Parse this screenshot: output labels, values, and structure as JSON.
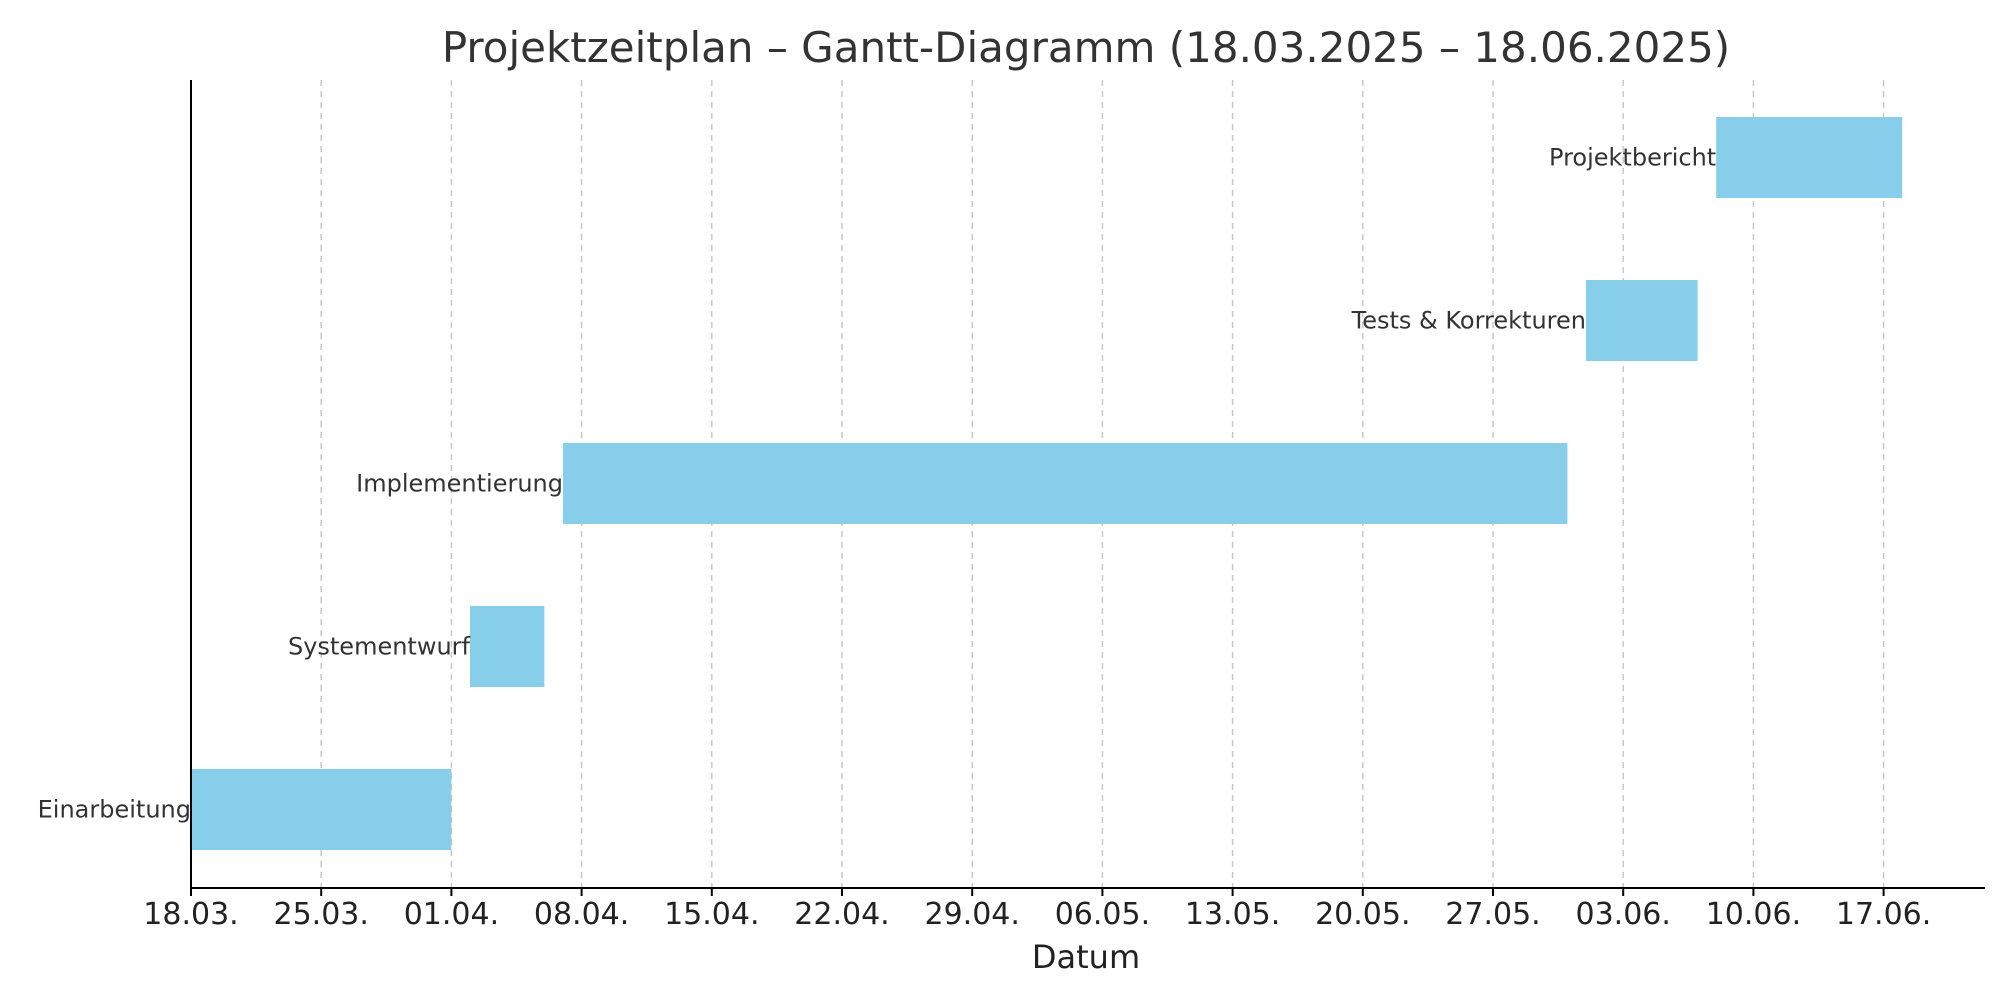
{
  "chart_data": {
    "type": "gantt",
    "title": "Projektzeitplan – Gantt-Diagramm (18.03.2025 – 18.06.2025)",
    "xlabel": "Datum",
    "ylabel": "",
    "x_axis": {
      "type": "date",
      "min": "2025-03-18",
      "max": "2025-06-30"
    },
    "ticks": [
      {
        "date": "2025-03-18",
        "label": "18.03."
      },
      {
        "date": "2025-03-25",
        "label": "25.03."
      },
      {
        "date": "2025-04-01",
        "label": "01.04."
      },
      {
        "date": "2025-04-08",
        "label": "08.04."
      },
      {
        "date": "2025-04-15",
        "label": "15.04."
      },
      {
        "date": "2025-04-22",
        "label": "22.04."
      },
      {
        "date": "2025-04-29",
        "label": "29.04."
      },
      {
        "date": "2025-05-06",
        "label": "06.05."
      },
      {
        "date": "2025-05-13",
        "label": "13.05."
      },
      {
        "date": "2025-05-20",
        "label": "20.05."
      },
      {
        "date": "2025-05-27",
        "label": "27.05."
      },
      {
        "date": "2025-06-03",
        "label": "03.06."
      },
      {
        "date": "2025-06-10",
        "label": "10.06."
      },
      {
        "date": "2025-06-17",
        "label": "17.06."
      }
    ],
    "tasks": [
      {
        "name": "Einarbeitung",
        "start": "2025-03-18",
        "end": "2025-04-01"
      },
      {
        "name": "Systementwurf",
        "start": "2025-04-02",
        "end": "2025-04-06"
      },
      {
        "name": "Implementierung",
        "start": "2025-04-07",
        "end": "2025-05-31"
      },
      {
        "name": "Tests & Korrekturen",
        "start": "2025-06-01",
        "end": "2025-06-07"
      },
      {
        "name": "Projektbericht",
        "start": "2025-06-08",
        "end": "2025-06-18"
      }
    ],
    "grid": {
      "x": true,
      "y": false,
      "style": "dashed"
    },
    "colors": {
      "bar": "#87ceeb",
      "grid": "#c8c8c8",
      "axis": "#000000",
      "text": "#333333"
    }
  }
}
